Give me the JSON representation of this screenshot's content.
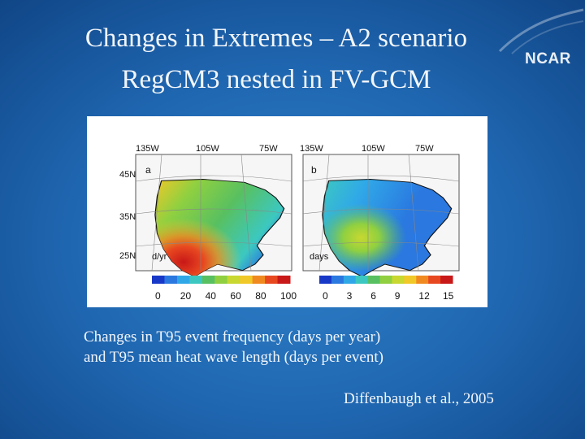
{
  "slide": {
    "title_line1": "Changes in Extremes – A2 scenario",
    "title_line2": "RegCM3 nested in FV-GCM",
    "logo": "NCAR",
    "caption_line1": "Changes in T95 event frequency  (days per year)",
    "caption_line2": "and  T95 mean heat wave length (days per event)",
    "citation": "Diffenbaugh et al., 2005"
  },
  "figure": {
    "longitude_labels": [
      "135W",
      "105W",
      "75W",
      "135W",
      "105W",
      "75W"
    ],
    "latitude_labels": [
      "45N",
      "35N",
      "25N"
    ],
    "panel_a": {
      "label": "a",
      "unit": "d/yr",
      "colorbar_ticks": [
        "0",
        "20",
        "40",
        "60",
        "80",
        "100"
      ],
      "colors": [
        "#1838c8",
        "#2a78e0",
        "#30a8e8",
        "#3cc8c0",
        "#58c060",
        "#90d040",
        "#c8d830",
        "#f0c828",
        "#f08a20",
        "#e84820",
        "#c81818"
      ]
    },
    "panel_b": {
      "label": "b",
      "unit": "days",
      "colorbar_ticks": [
        "0",
        "3",
        "6",
        "9",
        "12",
        "15"
      ],
      "colors": [
        "#1838c8",
        "#2a78e0",
        "#30a8e8",
        "#3cc8c0",
        "#58c060",
        "#90d040",
        "#c8d830",
        "#f0c828",
        "#f08a20",
        "#e84820",
        "#c81818"
      ]
    }
  }
}
